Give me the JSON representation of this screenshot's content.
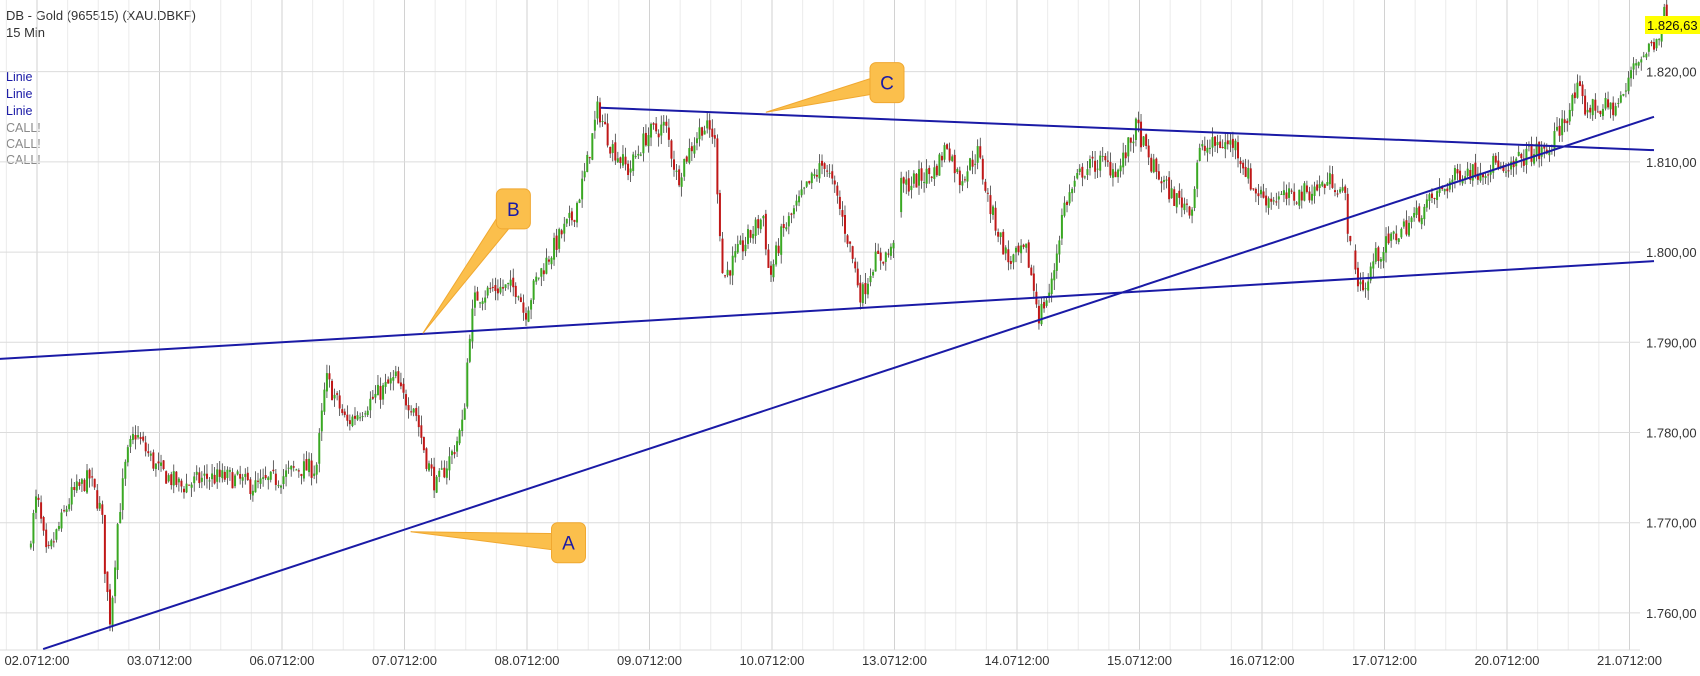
{
  "header": {
    "title": "DB - Gold (965515) (XAU.DBKF)",
    "interval": "15 Min"
  },
  "legend": [
    {
      "label": "Linie",
      "color": "#1a1aa6"
    },
    {
      "label": "Linie",
      "color": "#1a1aa6"
    },
    {
      "label": "Linie",
      "color": "#1a1aa6"
    },
    {
      "label": "CALL!",
      "color": "#8a8a8a"
    },
    {
      "label": "CALL!",
      "color": "#8a8a8a"
    },
    {
      "label": "CALL!",
      "color": "#8a8a8a"
    }
  ],
  "last_price_label": "1.826,63",
  "colors": {
    "up": "#3aa823",
    "down": "#c01818",
    "trendline": "#1a1aa6",
    "callout": "#fbbf4c",
    "last_price_bg": "#ffff00",
    "grid": "#dddddd"
  },
  "chart_data": {
    "type": "candlestick",
    "interval": "15 Min",
    "ylim": [
      1757,
      1827.5
    ],
    "y_ticks": [
      {
        "value": 1760,
        "label": "1.760,00"
      },
      {
        "value": 1770,
        "label": "1.770,00"
      },
      {
        "value": 1780,
        "label": "1.780,00"
      },
      {
        "value": 1790,
        "label": "1.790,00"
      },
      {
        "value": 1800,
        "label": "1.800,00"
      },
      {
        "value": 1810,
        "label": "1.810,00"
      },
      {
        "value": 1820,
        "label": "1.820,00"
      }
    ],
    "x_ticks": [
      {
        "day": 0,
        "label": "02.0712:00"
      },
      {
        "day": 1,
        "label": "03.0712:00"
      },
      {
        "day": 2,
        "label": "06.0712:00"
      },
      {
        "day": 3,
        "label": "07.0712:00"
      },
      {
        "day": 4,
        "label": "08.0712:00"
      },
      {
        "day": 5,
        "label": "09.0712:00"
      },
      {
        "day": 6,
        "label": "10.0712:00"
      },
      {
        "day": 7,
        "label": "13.0712:00"
      },
      {
        "day": 8,
        "label": "14.0712:00"
      },
      {
        "day": 9,
        "label": "15.0712:00"
      },
      {
        "day": 10,
        "label": "16.0712:00"
      },
      {
        "day": 11,
        "label": "17.0712:00"
      },
      {
        "day": 12,
        "label": "20.0712:00"
      },
      {
        "day": 13,
        "label": "21.0712:00"
      }
    ],
    "price_path": [
      [
        -0.05,
        1767
      ],
      [
        0.02,
        1773
      ],
      [
        0.1,
        1766
      ],
      [
        0.3,
        1773
      ],
      [
        0.45,
        1775
      ],
      [
        0.55,
        1771
      ],
      [
        0.58,
        1764
      ],
      [
        0.62,
        1759
      ],
      [
        0.68,
        1770
      ],
      [
        0.75,
        1777
      ],
      [
        0.82,
        1780
      ],
      [
        1.0,
        1776
      ],
      [
        1.2,
        1774
      ],
      [
        1.4,
        1775
      ],
      [
        1.6,
        1775
      ],
      [
        1.8,
        1774
      ],
      [
        2.0,
        1775
      ],
      [
        2.15,
        1776
      ],
      [
        2.3,
        1776
      ],
      [
        2.38,
        1786
      ],
      [
        2.45,
        1784
      ],
      [
        2.55,
        1781
      ],
      [
        2.7,
        1783
      ],
      [
        2.95,
        1786
      ],
      [
        3.0,
        1784
      ],
      [
        3.1,
        1783
      ],
      [
        3.2,
        1777
      ],
      [
        3.28,
        1774
      ],
      [
        3.42,
        1778
      ],
      [
        3.5,
        1781
      ],
      [
        3.55,
        1791
      ],
      [
        3.6,
        1795
      ],
      [
        3.75,
        1796
      ],
      [
        3.95,
        1796
      ],
      [
        4.0,
        1793
      ],
      [
        4.1,
        1797
      ],
      [
        4.3,
        1802
      ],
      [
        4.4,
        1804
      ],
      [
        4.5,
        1809
      ],
      [
        4.6,
        1816
      ],
      [
        4.7,
        1812
      ],
      [
        4.85,
        1809
      ],
      [
        5.0,
        1813
      ],
      [
        5.15,
        1814
      ],
      [
        5.25,
        1808
      ],
      [
        5.3,
        1810
      ],
      [
        5.45,
        1814
      ],
      [
        5.55,
        1813
      ],
      [
        5.62,
        1797
      ],
      [
        5.75,
        1800
      ],
      [
        5.95,
        1804
      ],
      [
        6.0,
        1797
      ],
      [
        6.1,
        1802
      ],
      [
        6.3,
        1807
      ],
      [
        6.45,
        1810
      ],
      [
        6.55,
        1806
      ],
      [
        6.65,
        1801
      ],
      [
        6.75,
        1795
      ],
      [
        6.85,
        1799
      ],
      [
        7.0,
        1800
      ],
      [
        7.05,
        1807
      ],
      [
        7.2,
        1808
      ],
      [
        7.35,
        1809
      ],
      [
        7.45,
        1812
      ],
      [
        7.55,
        1808
      ],
      [
        7.7,
        1811
      ],
      [
        7.8,
        1805
      ],
      [
        7.95,
        1799
      ],
      [
        8.1,
        1800
      ],
      [
        8.2,
        1793
      ],
      [
        8.3,
        1796
      ],
      [
        8.4,
        1805
      ],
      [
        8.55,
        1809
      ],
      [
        8.7,
        1810
      ],
      [
        8.85,
        1809
      ],
      [
        9.0,
        1814
      ],
      [
        9.1,
        1810
      ],
      [
        9.2,
        1808
      ],
      [
        9.3,
        1806
      ],
      [
        9.45,
        1805
      ],
      [
        9.5,
        1811
      ],
      [
        9.65,
        1812
      ],
      [
        9.8,
        1812
      ],
      [
        9.95,
        1807
      ],
      [
        10.05,
        1806
      ],
      [
        10.25,
        1806
      ],
      [
        10.45,
        1807
      ],
      [
        10.6,
        1808
      ],
      [
        10.7,
        1806
      ],
      [
        10.75,
        1799
      ],
      [
        10.8,
        1797
      ],
      [
        10.88,
        1796
      ],
      [
        10.92,
        1799
      ],
      [
        11.05,
        1801
      ],
      [
        11.2,
        1803
      ],
      [
        11.35,
        1805
      ],
      [
        11.5,
        1807
      ],
      [
        11.65,
        1809
      ],
      [
        11.8,
        1809
      ],
      [
        11.95,
        1810
      ],
      [
        12.0,
        1808
      ],
      [
        12.1,
        1810
      ],
      [
        12.2,
        1811
      ],
      [
        12.35,
        1811
      ],
      [
        12.5,
        1815
      ],
      [
        12.6,
        1818
      ],
      [
        12.65,
        1816
      ],
      [
        12.75,
        1816
      ],
      [
        12.9,
        1816
      ],
      [
        13.0,
        1818
      ],
      [
        13.05,
        1821
      ],
      [
        13.15,
        1822
      ],
      [
        13.25,
        1824
      ],
      [
        13.32,
        1827
      ]
    ],
    "gaps": [
      [
        7.0,
        7.04
      ],
      [
        10.74,
        10.76
      ]
    ],
    "trendlines": [
      {
        "name": "A",
        "from": [
          0.05,
          1756
        ],
        "to": [
          13.2,
          1815
        ]
      },
      {
        "name": "B",
        "from": [
          -0.5,
          1788
        ],
        "to": [
          13.2,
          1799
        ]
      },
      {
        "name": "C",
        "from": [
          4.6,
          1816
        ],
        "to": [
          13.2,
          1811.3
        ]
      }
    ],
    "callouts": [
      {
        "label": "A",
        "anchor": [
          3.05,
          1769
        ],
        "box": [
          4.2,
          1770
        ]
      },
      {
        "label": "B",
        "anchor": [
          3.15,
          1791
        ],
        "box": [
          3.75,
          1807
        ]
      },
      {
        "label": "C",
        "anchor": [
          5.95,
          1815.5
        ],
        "box": [
          6.8,
          1821
        ]
      }
    ]
  }
}
